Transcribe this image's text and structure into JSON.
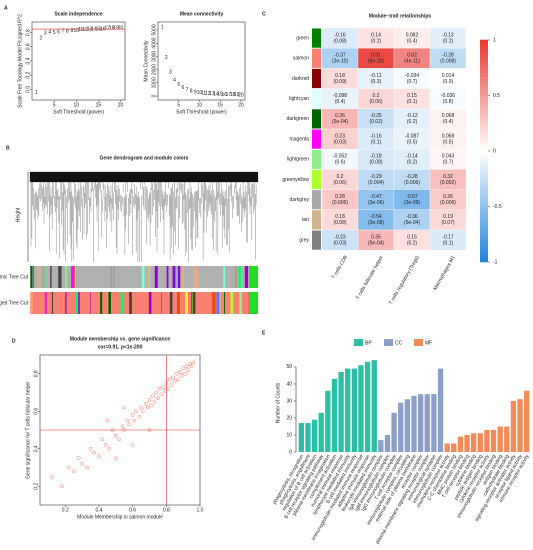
{
  "chart_data": [
    {
      "type": "scatter",
      "panel": "A",
      "title": "Scale independence",
      "marker": "text",
      "color": "#e0302a",
      "x_label": "Soft Threshold (power)",
      "y_label": "Scale Free Topology Model Fit,signed R^2",
      "x": [
        1,
        2,
        3,
        4,
        5,
        6,
        7,
        8,
        9,
        10,
        11,
        12,
        13,
        14,
        15,
        16,
        17,
        18,
        19,
        20
      ],
      "y": [
        -0.05,
        0.72,
        0.79,
        0.81,
        0.8,
        0.81,
        0.82,
        0.82,
        0.83,
        0.83,
        0.84,
        0.84,
        0.85,
        0.85,
        0.85,
        0.85,
        0.86,
        0.86,
        0.86,
        0.86
      ],
      "hline": 0.85,
      "xlim": [
        0,
        21
      ],
      "ylim": [
        -0.15,
        0.95
      ],
      "xticks": [
        5,
        10,
        15,
        20
      ],
      "yticks": [
        {
          "value": 0,
          "label": "0.0"
        },
        0.2,
        0.4,
        0.6,
        0.8
      ]
    },
    {
      "type": "scatter",
      "title": "Mean connectivity",
      "marker": "text",
      "color": "#e0302a",
      "x_label": "Soft Threshold (power)",
      "y_label": "Mean Connectivity",
      "x": [
        1,
        2,
        3,
        4,
        5,
        6,
        7,
        8,
        9,
        10,
        11,
        12,
        13,
        14,
        15,
        16,
        17,
        18,
        19,
        20
      ],
      "y": [
        5200,
        2900,
        1800,
        1200,
        850,
        620,
        470,
        370,
        300,
        250,
        210,
        180,
        160,
        140,
        125,
        115,
        105,
        95,
        88,
        80
      ],
      "xlim": [
        0,
        21
      ],
      "ylim": [
        -300,
        5600
      ],
      "xticks": [
        5,
        10,
        15,
        20
      ],
      "yticks": [
        0,
        1000,
        2000,
        3000,
        4000,
        5000
      ]
    },
    {
      "type": "dendrogram",
      "panel": "B",
      "title": "Gene dendrogram and module colors",
      "y_label": "Height",
      "tracks": [
        "Dynamic Tree Cut",
        "Merged Tree Cut"
      ]
    },
    {
      "type": "heatmap",
      "panel": "C",
      "title": "Module−trait relationships",
      "rows": [
        "green",
        "salmon",
        "darkred",
        "lightcyan",
        "darkgreen",
        "magenta",
        "lightgreen",
        "greenyellow",
        "darkgrey",
        "tan",
        "grey"
      ],
      "columns": [
        "T cells CD8",
        "T cells follicular helper",
        "T cells regulatory (Tregs)",
        "Macrophages M1"
      ],
      "values": [
        [
          -0.16,
          0.14,
          0.082,
          -0.13
        ],
        [
          -0.37,
          0.91,
          0.62,
          -0.28
        ],
        [
          0.18,
          -0.11,
          -0.034,
          0.014
        ],
        [
          -0.098,
          0.2,
          0.15,
          -0.036
        ],
        [
          0.36,
          -0.25,
          -0.12,
          0.068
        ],
        [
          0.23,
          -0.16,
          -0.087,
          0.068
        ],
        [
          -0.052,
          -0.18,
          -0.14,
          0.043
        ],
        [
          0.2,
          -0.29,
          -0.28,
          0.32
        ],
        [
          0.28,
          -0.47,
          -0.57,
          0.26
        ],
        [
          0.18,
          -0.54,
          -0.36,
          0.19
        ],
        [
          -0.23,
          0.35,
          0.15,
          -0.17
        ]
      ],
      "pvalue_labels": [
        [
          "(0.08)",
          "(0.2)",
          "(0.4)",
          "(0.2)"
        ],
        [
          "(3e-10)",
          "(6e-10)",
          "(4e-11)",
          "(0.008)"
        ],
        [
          "(0.09)",
          "(0.3)",
          "(0.7)",
          "(0.9)"
        ],
        [
          "(0.4)",
          "(0.06)",
          "(0.1)",
          "(0.8)"
        ],
        [
          "(5e-04)",
          "(0.02)",
          "(0.2)",
          "(0.4)"
        ],
        [
          "(0.03)",
          "(0.1)",
          "(0.5)",
          "(0.5)"
        ],
        [
          "(0.6)",
          "(0.08)",
          "(0.2)",
          "(0.7)"
        ],
        [
          "(0.06)",
          "(0.004)",
          "(0.006)",
          "(0.002)"
        ],
        [
          "(0.006)",
          "(3e-06)",
          "(3e-09)",
          "(0.009)"
        ],
        [
          "(0.08)",
          "(3e-08)",
          "(5e-04)",
          "(0.07)"
        ],
        [
          "(0.03)",
          "(5e-04)",
          "(0.2)",
          "(0.1)"
        ]
      ],
      "ylim": [
        -1,
        1
      ],
      "yticks": [
        -1,
        -0.5,
        0,
        0.5,
        1
      ]
    },
    {
      "type": "scatter",
      "panel": "D",
      "title": "Module membership vs. gene significance",
      "subtitle": "cor=0.91, p<1e-200",
      "marker": "circle",
      "color": "#f4735f",
      "x_label": "Module Membership in salmon module",
      "y_label": "Gene significance for  T cells follicular helper",
      "x": [
        0.12,
        0.18,
        0.22,
        0.25,
        0.28,
        0.3,
        0.33,
        0.35,
        0.37,
        0.4,
        0.42,
        0.44,
        0.46,
        0.48,
        0.5,
        0.52,
        0.54,
        0.55,
        0.57,
        0.58,
        0.6,
        0.61,
        0.62,
        0.64,
        0.65,
        0.66,
        0.68,
        0.69,
        0.7,
        0.71,
        0.72,
        0.73,
        0.74,
        0.75,
        0.76,
        0.77,
        0.78,
        0.79,
        0.8,
        0.81,
        0.82,
        0.83,
        0.84,
        0.85,
        0.86,
        0.87,
        0.88,
        0.89,
        0.9,
        0.91,
        0.92,
        0.93,
        0.94,
        0.95,
        0.96,
        0.5,
        0.6,
        0.7,
        0.45,
        0.55
      ],
      "y": [
        0.25,
        0.2,
        0.3,
        0.28,
        0.35,
        0.32,
        0.3,
        0.4,
        0.38,
        0.36,
        0.45,
        0.42,
        0.4,
        0.5,
        0.47,
        0.45,
        0.52,
        0.5,
        0.55,
        0.53,
        0.58,
        0.55,
        0.6,
        0.57,
        0.62,
        0.6,
        0.64,
        0.62,
        0.66,
        0.63,
        0.68,
        0.65,
        0.7,
        0.67,
        0.72,
        0.69,
        0.73,
        0.71,
        0.75,
        0.72,
        0.77,
        0.74,
        0.78,
        0.76,
        0.8,
        0.77,
        0.81,
        0.79,
        0.83,
        0.8,
        0.84,
        0.82,
        0.85,
        0.84,
        0.86,
        0.35,
        0.42,
        0.5,
        0.55,
        0.62
      ],
      "hline": 0.5,
      "vline": 0.8,
      "xlim": [
        0.05,
        1.0
      ],
      "ylim": [
        0.1,
        0.9
      ],
      "xticks": [
        0.2,
        0.4,
        0.6,
        0.8,
        {
          "value": 1,
          "label": "1.0"
        }
      ],
      "yticks": [
        0.2,
        0.4,
        0.6,
        0.8
      ]
    },
    {
      "type": "bar",
      "panel": "E",
      "y_label": "Number of Counts",
      "ylim": [
        0,
        57
      ],
      "yticks": [
        0,
        10,
        20,
        30,
        40,
        50
      ],
      "series": [
        {
          "name": "BP",
          "color": "#2bbfa4",
          "categories": [
            "phagocytosis, recognition",
            "phagocytosis, engulfment",
            "regulation of B cell activation",
            "B cell receptor signaling pathway",
            "plasma membrane invagination",
            "complement activation",
            "humoral immune response",
            "lymphocyte mediated immunity",
            "B cell mediated immunity",
            "immunoglobulin mediated immune response",
            "adaptive immune response",
            "leukocyte mediated immunity"
          ],
          "values": [
            17,
            17,
            19,
            23,
            36,
            43,
            47,
            49,
            49,
            51,
            53,
            54
          ]
        },
        {
          "name": "CC",
          "color": "#8b9fca",
          "categories": [
            "IgA immunoglobulin complex",
            "IgM immunoglobulin complex",
            "IgG immunoglobulin complex",
            "T cell receptor complex",
            "immunoglobulin complex, circulating",
            "external side of plasma membrane",
            "receptor complex",
            "plasma membrane signaling receptor complex",
            "immunological synapse",
            "immunoglobulin complex"
          ],
          "values": [
            7,
            10,
            23,
            29,
            31,
            33,
            34,
            34,
            34,
            49
          ]
        },
        {
          "name": "MF",
          "color": "#f48a55",
          "categories": [
            "chemokine receptor activity",
            "C-C chemokine binding",
            "MHC protein binding",
            "T cell receptor binding",
            "cytokine binding",
            "peptide antigen binding",
            "cytokine receptor activity",
            "immunoglobulin receptor binding",
            "antigen binding",
            "carbohydrate binding",
            "signaling receptor activator activity",
            "receptor ligand activity",
            "immune receptor activity"
          ],
          "values": [
            5,
            5,
            9,
            10,
            11,
            11,
            13,
            13,
            15,
            15,
            30,
            31,
            36
          ]
        }
      ]
    }
  ]
}
